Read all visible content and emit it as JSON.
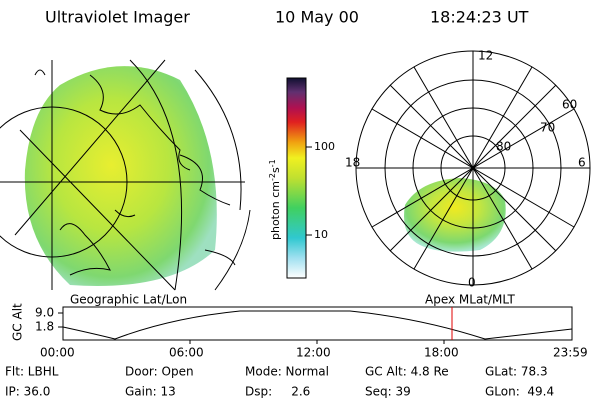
{
  "header": {
    "title": "Ultraviolet Imager",
    "date": "10 May 00",
    "time": "18:24:23 UT"
  },
  "colorbar": {
    "unit": "photon cm",
    "exp1": "-2",
    "unit2": "s",
    "exp2": "-1",
    "ticks": [
      "100",
      "10"
    ]
  },
  "map": {
    "left_label": "Geographic Lat/Lon",
    "right_label": "Apex MLat/MLT"
  },
  "polar": {
    "mlt": [
      "12",
      "18",
      "6",
      "0"
    ],
    "lat": [
      "60",
      "70",
      "80"
    ]
  },
  "altitude": {
    "label": "GC Alt",
    "yticks": [
      "9.0",
      "1.8"
    ],
    "times": [
      "00:00",
      "06:00",
      "12:00",
      "18:00",
      "23:59"
    ]
  },
  "info": {
    "rows": [
      [
        "Flt: LBHL",
        "Door: Open",
        "Mode: Normal",
        "GC Alt: 4.8 Re",
        "GLat: 78.3"
      ],
      [
        "IP: 36.0",
        "Gain: 13",
        "Dsp:     2.6",
        "Seq: 39",
        "GLon:  49.4"
      ]
    ]
  }
}
